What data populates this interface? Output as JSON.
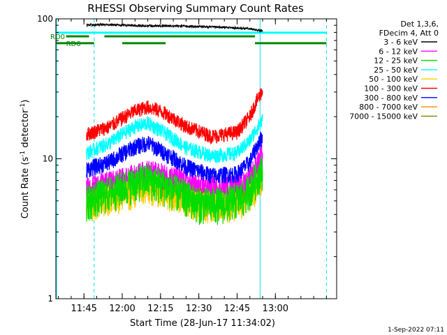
{
  "chart_data": {
    "type": "line",
    "title": "RHESSI Observing Summary Count Rates",
    "xlabel": "Start Time (28-Jun-17 11:34:02)",
    "ylabel_main": "Count Rate (s",
    "ylabel_sup1": "-1",
    "ylabel_mid": " detector",
    "ylabel_sup2": "-1",
    "ylabel_end": ")",
    "yscale": "log",
    "ylim": [
      1,
      100
    ],
    "xlim_minutes": [
      "11:34",
      "13:24"
    ],
    "x_tick_labels": [
      "11:45",
      "12:00",
      "12:15",
      "12:30",
      "12:45",
      "13:00"
    ],
    "y_tick_labels": [
      "1",
      "10",
      "100"
    ],
    "legend_header": [
      "Det 1,3,6,",
      "FDecim 4, Att 0"
    ],
    "series": [
      {
        "name": "3 - 6 keV",
        "color": "#000000",
        "x": [
          "11:46",
          "11:50",
          "12:00",
          "12:10",
          "12:20",
          "12:30",
          "12:40",
          "12:45",
          "12:50",
          "12:53",
          "12:55"
        ],
        "values": [
          90,
          91,
          90,
          89,
          89,
          88,
          87,
          86,
          85,
          83,
          82
        ]
      },
      {
        "name": "6 - 12 keV",
        "color": "#ff00ff",
        "x": [
          "11:46",
          "11:55",
          "12:05",
          "12:10",
          "12:20",
          "12:30",
          "12:40",
          "12:48",
          "12:52",
          "12:55"
        ],
        "values": [
          6.2,
          6.8,
          7.6,
          8.2,
          7.4,
          6.4,
          6.2,
          6.8,
          8.5,
          11
        ]
      },
      {
        "name": "12 - 25 keV",
        "color": "#00dd00",
        "x": [
          "11:46",
          "11:55",
          "12:05",
          "12:10",
          "12:20",
          "12:30",
          "12:40",
          "12:48",
          "12:52",
          "12:55"
        ],
        "values": [
          5.0,
          5.8,
          6.8,
          7.2,
          6.0,
          4.8,
          4.8,
          5.4,
          7.0,
          8.5
        ]
      },
      {
        "name": "25 - 50 keV",
        "color": "#00ffff",
        "x": [
          "11:46",
          "11:55",
          "12:05",
          "12:10",
          "12:15",
          "12:25",
          "12:35",
          "12:45",
          "12:50",
          "12:55"
        ],
        "values": [
          11,
          13,
          17,
          18,
          16,
          12,
          10.5,
          11,
          13.5,
          19
        ]
      },
      {
        "name": "50 - 100 keV",
        "color": "#ffcc00",
        "x": [
          "11:46",
          "11:55",
          "12:05",
          "12:10",
          "12:20",
          "12:30",
          "12:40",
          "12:48",
          "12:52",
          "12:55"
        ],
        "values": [
          4.6,
          5.2,
          5.8,
          6.2,
          5.6,
          4.7,
          4.6,
          5.0,
          6.0,
          7.4
        ]
      },
      {
        "name": "100 - 300 keV",
        "color": "#ff0000",
        "x": [
          "11:46",
          "11:55",
          "12:05",
          "12:10",
          "12:15",
          "12:25",
          "12:35",
          "12:45",
          "12:50",
          "12:55"
        ],
        "values": [
          15,
          17,
          22,
          23.5,
          22,
          17,
          14.5,
          15.5,
          20,
          31
        ]
      },
      {
        "name": "300 - 800 keV",
        "color": "#0000ff",
        "x": [
          "11:46",
          "11:55",
          "12:05",
          "12:10",
          "12:15",
          "12:25",
          "12:35",
          "12:45",
          "12:50",
          "12:55"
        ],
        "values": [
          8.4,
          9.5,
          12.2,
          13,
          11.5,
          8.8,
          7.6,
          7.8,
          9.5,
          14.5
        ]
      },
      {
        "name": "800 - 7000 keV",
        "color": "#ff8800",
        "x": [
          "11:46",
          "11:55",
          "12:05",
          "12:10",
          "12:20",
          "12:30",
          "12:40",
          "12:48",
          "12:52",
          "12:55"
        ],
        "values": [
          5.2,
          5.8,
          6.6,
          7.0,
          6.0,
          5.3,
          5.2,
          5.6,
          6.8,
          8.8
        ]
      },
      {
        "name": "7000 - 15000 keV",
        "color": "#808000",
        "x": [
          "11:46",
          "11:55",
          "12:05",
          "12:10",
          "12:20",
          "12:30",
          "12:40",
          "12:48",
          "12:52",
          "12:55"
        ],
        "values": [
          5.4,
          6.0,
          6.8,
          7.2,
          6.2,
          5.5,
          5.4,
          5.8,
          7.0,
          9.0
        ]
      }
    ],
    "annotations": [
      {
        "label": "RD0",
        "color": "#008800"
      },
      {
        "label": "RD6",
        "color": "#008800"
      }
    ],
    "timestamp": "1-Sep-2022 07:11"
  }
}
